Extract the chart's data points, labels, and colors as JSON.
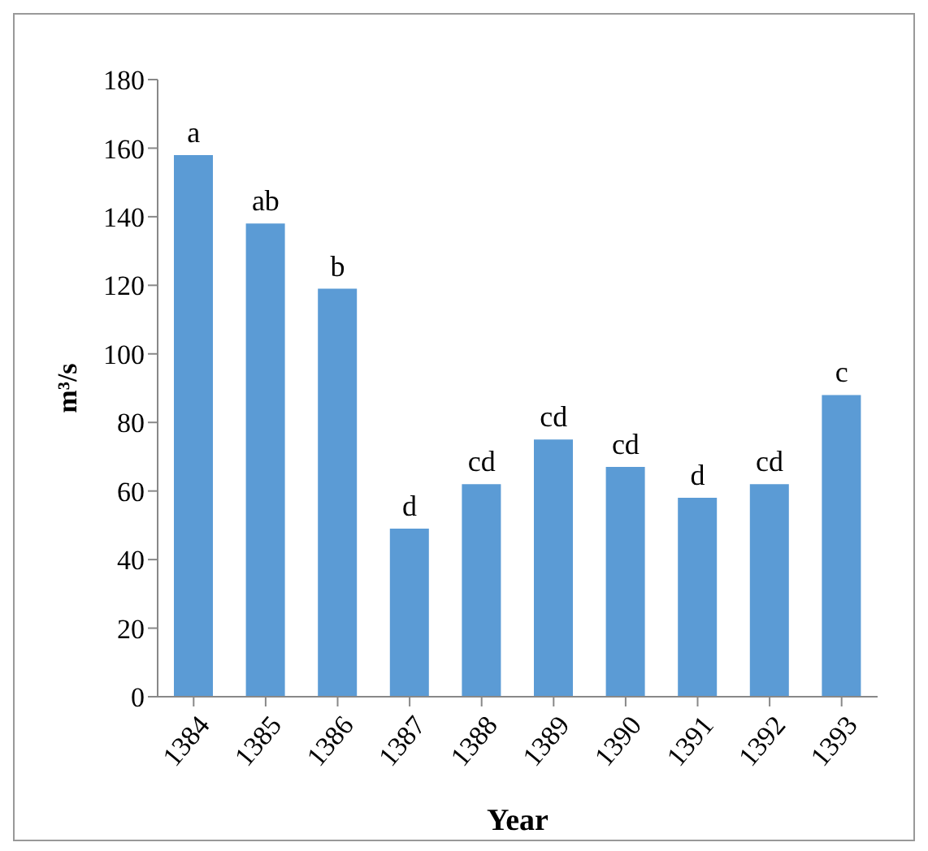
{
  "chart_data": {
    "type": "bar",
    "xlabel": "Year",
    "ylabel": "m³/s",
    "categories": [
      "1384",
      "1385",
      "1386",
      "1387",
      "1388",
      "1389",
      "1390",
      "1391",
      "1392",
      "1393"
    ],
    "values": [
      158,
      138,
      119,
      49,
      62,
      75,
      67,
      58,
      62,
      88
    ],
    "color": "#5b9bd5",
    "ylim": [
      0,
      180
    ],
    "yticks": [
      0,
      20,
      40,
      60,
      80,
      100,
      120,
      140,
      160,
      180
    ],
    "grid": false,
    "legend": false,
    "annotations": [
      {
        "text": "a",
        "x": "1384",
        "y": 158
      },
      {
        "text": "ab",
        "x": "1385",
        "y": 138
      },
      {
        "text": "b",
        "x": "1386",
        "y": 119
      },
      {
        "text": "d",
        "x": "1387",
        "y": 49
      },
      {
        "text": "cd",
        "x": "1388",
        "y": 62
      },
      {
        "text": "cd",
        "x": "1389",
        "y": 75
      },
      {
        "text": "cd",
        "x": "1390",
        "y": 67
      },
      {
        "text": "d",
        "x": "1391",
        "y": 58
      },
      {
        "text": "cd",
        "x": "1392",
        "y": 62
      },
      {
        "text": "c",
        "x": "1393",
        "y": 88
      }
    ]
  }
}
